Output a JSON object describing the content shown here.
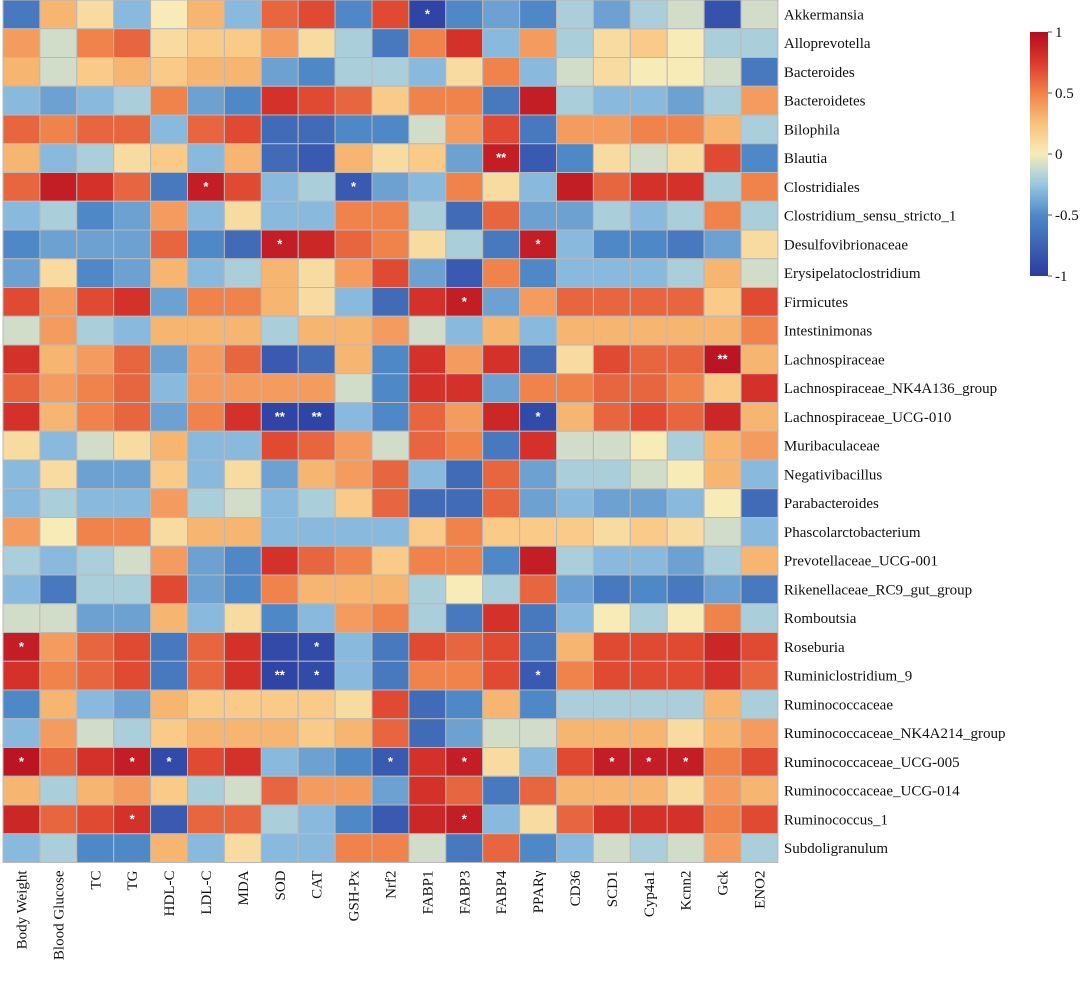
{
  "chart_data": {
    "type": "heatmap",
    "title": "",
    "rows": [
      "Akkermansia",
      "Alloprevotella",
      "Bacteroides",
      "Bacteroidetes",
      "Bilophila",
      "Blautia",
      "Clostridiales",
      "Clostridium_sensu_stricto_1",
      "Desulfovibrionaceae",
      "Erysipelatoclostridium",
      "Firmicutes",
      "Intestinimonas",
      "Lachnospiraceae",
      "Lachnospiraceae_NK4A136_group",
      "Lachnospiraceae_UCG-010",
      "Muribaculaceae",
      "Negativibacillus",
      "Parabacteroides",
      "Phascolarctobacterium",
      "Prevotellaceae_UCG-001",
      "Rikenellaceae_RC9_gut_group",
      "Romboutsia",
      "Roseburia",
      "Ruminiclostridium_9",
      "Ruminococcaceae",
      "Ruminococcaceae_NK4A214_group",
      "Ruminococcaceae_UCG-005",
      "Ruminococcaceae_UCG-014",
      "Ruminococcus_1",
      "Subdoligranulum"
    ],
    "columns": [
      "Body Weight",
      "Blood Glucose",
      "TC",
      "TG",
      "HDL-C",
      "LDL-C",
      "MDA",
      "SOD",
      "CAT",
      "GSH-Px",
      "Nrf2",
      "FABP1",
      "FABP3",
      "FABP4",
      "PPARγ",
      "CD36",
      "SCD1",
      "Cyp4a1",
      "Kcnn2",
      "Gck",
      "ENO2"
    ],
    "values": [
      [
        -0.6,
        0.3,
        0.1,
        -0.3,
        0.0,
        0.3,
        -0.3,
        0.6,
        0.7,
        -0.5,
        0.7,
        -0.95,
        -0.5,
        -0.4,
        -0.5,
        -0.2,
        -0.4,
        -0.2,
        -0.1,
        -0.85,
        -0.1
      ],
      [
        0.4,
        -0.1,
        0.5,
        0.6,
        0.1,
        0.2,
        0.2,
        0.4,
        0.1,
        -0.2,
        -0.6,
        0.5,
        0.8,
        -0.3,
        0.4,
        -0.2,
        0.1,
        0.2,
        0.0,
        -0.2,
        -0.2
      ],
      [
        0.3,
        -0.1,
        0.2,
        0.3,
        0.2,
        0.3,
        0.3,
        -0.4,
        -0.5,
        -0.2,
        -0.2,
        -0.3,
        0.1,
        0.5,
        -0.3,
        -0.1,
        0.1,
        0.0,
        0.0,
        -0.1,
        -0.6
      ],
      [
        -0.3,
        -0.4,
        -0.3,
        -0.2,
        0.5,
        -0.4,
        -0.5,
        0.8,
        0.7,
        0.6,
        0.2,
        0.5,
        0.5,
        -0.6,
        0.9,
        -0.2,
        -0.3,
        -0.3,
        -0.4,
        -0.2,
        0.4
      ],
      [
        0.6,
        0.5,
        0.6,
        0.6,
        -0.3,
        0.6,
        0.7,
        -0.7,
        -0.7,
        -0.5,
        -0.5,
        -0.1,
        0.4,
        0.7,
        -0.6,
        0.4,
        0.4,
        0.5,
        0.5,
        0.3,
        -0.2
      ],
      [
        0.3,
        -0.3,
        -0.2,
        0.1,
        0.2,
        -0.3,
        0.3,
        -0.7,
        -0.8,
        0.3,
        0.1,
        0.2,
        -0.4,
        0.9,
        -0.8,
        -0.5,
        0.1,
        -0.1,
        0.1,
        0.7,
        -0.5
      ],
      [
        0.6,
        0.9,
        0.8,
        0.6,
        -0.6,
        0.9,
        0.7,
        -0.3,
        -0.2,
        -0.8,
        -0.4,
        -0.3,
        0.5,
        0.1,
        -0.3,
        0.9,
        0.6,
        0.8,
        0.8,
        -0.2,
        0.5
      ],
      [
        -0.3,
        -0.2,
        -0.5,
        -0.4,
        0.4,
        -0.3,
        0.1,
        -0.3,
        -0.3,
        0.5,
        0.5,
        -0.2,
        -0.7,
        0.6,
        -0.4,
        -0.4,
        -0.2,
        -0.3,
        -0.2,
        0.5,
        -0.2
      ],
      [
        -0.5,
        -0.4,
        -0.4,
        -0.4,
        0.6,
        -0.5,
        -0.7,
        0.9,
        0.85,
        0.6,
        0.5,
        0.1,
        -0.2,
        -0.6,
        0.9,
        -0.3,
        -0.5,
        -0.5,
        -0.6,
        -0.4,
        0.1
      ],
      [
        -0.4,
        0.1,
        -0.5,
        -0.4,
        0.3,
        -0.3,
        -0.2,
        0.3,
        0.1,
        0.4,
        0.7,
        -0.4,
        -0.8,
        0.5,
        -0.5,
        -0.3,
        -0.3,
        -0.3,
        -0.2,
        0.3,
        -0.1
      ],
      [
        0.7,
        0.4,
        0.7,
        0.8,
        -0.4,
        0.5,
        0.5,
        0.3,
        0.1,
        -0.3,
        -0.7,
        0.8,
        0.9,
        -0.4,
        0.4,
        0.6,
        0.6,
        0.6,
        0.6,
        0.2,
        0.7
      ],
      [
        -0.1,
        0.4,
        -0.2,
        -0.3,
        0.3,
        0.3,
        0.3,
        -0.2,
        0.3,
        0.3,
        0.4,
        -0.1,
        -0.3,
        0.3,
        -0.3,
        0.3,
        0.3,
        0.3,
        0.3,
        0.3,
        0.5
      ],
      [
        0.8,
        0.3,
        0.4,
        0.6,
        -0.4,
        0.4,
        0.6,
        -0.8,
        -0.7,
        0.3,
        -0.5,
        0.8,
        0.4,
        0.8,
        -0.7,
        0.1,
        0.7,
        0.6,
        0.6,
        0.95,
        0.3
      ],
      [
        0.6,
        0.4,
        0.5,
        0.6,
        -0.3,
        0.4,
        0.4,
        0.4,
        0.4,
        -0.1,
        -0.5,
        0.8,
        0.8,
        -0.4,
        0.5,
        0.5,
        0.6,
        0.6,
        0.5,
        0.2,
        0.8
      ],
      [
        0.8,
        0.3,
        0.5,
        0.6,
        -0.4,
        0.5,
        0.8,
        -0.95,
        -0.95,
        -0.3,
        -0.5,
        0.6,
        0.4,
        0.85,
        -0.9,
        0.3,
        0.6,
        0.7,
        0.6,
        0.85,
        0.3
      ],
      [
        0.1,
        -0.3,
        -0.1,
        0.1,
        0.3,
        -0.3,
        -0.3,
        0.7,
        0.6,
        0.4,
        -0.1,
        0.6,
        0.5,
        -0.6,
        0.8,
        -0.1,
        -0.1,
        0.0,
        -0.2,
        0.3,
        0.4
      ],
      [
        -0.3,
        0.1,
        -0.4,
        -0.4,
        0.2,
        -0.3,
        0.1,
        -0.4,
        0.3,
        0.4,
        0.6,
        -0.3,
        -0.7,
        0.6,
        -0.4,
        -0.2,
        -0.2,
        -0.1,
        0.0,
        0.3,
        -0.3
      ],
      [
        -0.3,
        -0.2,
        -0.3,
        -0.3,
        0.4,
        -0.2,
        -0.1,
        -0.3,
        -0.2,
        0.2,
        0.6,
        -0.7,
        -0.7,
        0.6,
        -0.4,
        -0.3,
        -0.4,
        -0.4,
        -0.3,
        0.0,
        -0.7
      ],
      [
        0.4,
        0.0,
        0.5,
        0.5,
        0.1,
        0.3,
        0.3,
        -0.3,
        -0.3,
        -0.3,
        -0.3,
        0.2,
        0.5,
        0.2,
        0.2,
        0.2,
        0.1,
        0.2,
        0.1,
        -0.1,
        -0.3
      ],
      [
        -0.2,
        -0.3,
        -0.2,
        -0.1,
        0.4,
        -0.4,
        -0.5,
        0.8,
        0.6,
        0.5,
        0.2,
        0.5,
        0.5,
        -0.5,
        0.9,
        -0.2,
        -0.3,
        -0.3,
        -0.4,
        -0.2,
        0.3
      ],
      [
        -0.3,
        -0.6,
        -0.2,
        -0.2,
        0.7,
        -0.4,
        -0.5,
        0.5,
        0.3,
        0.3,
        0.3,
        -0.2,
        0.0,
        -0.2,
        0.6,
        -0.4,
        -0.6,
        -0.5,
        -0.6,
        -0.4,
        -0.6
      ],
      [
        -0.1,
        -0.1,
        -0.4,
        -0.4,
        0.3,
        -0.3,
        0.1,
        -0.5,
        -0.3,
        0.4,
        0.5,
        -0.2,
        -0.6,
        0.8,
        -0.6,
        -0.3,
        0.0,
        -0.2,
        0.0,
        0.5,
        -0.2
      ],
      [
        0.9,
        0.4,
        0.6,
        0.7,
        -0.6,
        0.6,
        0.8,
        -0.9,
        -0.9,
        -0.3,
        -0.6,
        0.7,
        0.6,
        0.7,
        -0.6,
        0.3,
        0.7,
        0.7,
        0.7,
        0.85,
        0.7
      ],
      [
        0.8,
        0.5,
        0.6,
        0.7,
        -0.6,
        0.6,
        0.8,
        -0.95,
        -0.9,
        -0.3,
        -0.6,
        0.5,
        0.5,
        0.7,
        -0.8,
        0.5,
        0.7,
        0.7,
        0.7,
        0.8,
        0.6
      ],
      [
        -0.5,
        0.3,
        -0.3,
        -0.4,
        0.3,
        0.2,
        0.2,
        0.2,
        0.2,
        0.1,
        0.7,
        -0.7,
        -0.5,
        0.3,
        -0.5,
        -0.2,
        -0.2,
        -0.2,
        -0.2,
        0.3,
        -0.2
      ],
      [
        -0.3,
        0.4,
        -0.1,
        -0.2,
        0.2,
        0.3,
        0.3,
        0.3,
        0.2,
        0.3,
        0.6,
        -0.7,
        -0.4,
        -0.1,
        -0.1,
        0.3,
        0.3,
        0.3,
        0.1,
        0.3,
        0.4
      ],
      [
        0.95,
        0.6,
        0.8,
        0.9,
        -0.9,
        0.7,
        0.8,
        -0.3,
        -0.4,
        -0.5,
        -0.8,
        0.8,
        0.9,
        0.1,
        -0.3,
        0.7,
        0.9,
        0.9,
        0.9,
        0.5,
        0.7
      ],
      [
        0.3,
        -0.2,
        0.3,
        0.4,
        0.2,
        -0.2,
        -0.1,
        0.6,
        0.4,
        0.4,
        -0.4,
        0.8,
        0.6,
        -0.6,
        0.6,
        0.3,
        0.3,
        0.3,
        0.1,
        0.4,
        0.3
      ],
      [
        0.85,
        0.6,
        0.7,
        0.8,
        -0.8,
        0.6,
        0.6,
        -0.2,
        -0.3,
        -0.5,
        -0.8,
        0.85,
        0.9,
        -0.3,
        0.1,
        0.6,
        0.8,
        0.8,
        0.8,
        0.5,
        0.7
      ],
      [
        -0.3,
        -0.2,
        -0.5,
        -0.5,
        0.3,
        -0.3,
        0.1,
        -0.3,
        -0.3,
        0.5,
        0.5,
        -0.1,
        -0.6,
        0.6,
        -0.5,
        -0.3,
        -0.1,
        -0.2,
        -0.1,
        0.4,
        -0.2
      ]
    ],
    "annotations": [
      {
        "row": 0,
        "col": 11,
        "text": "*"
      },
      {
        "row": 5,
        "col": 13,
        "text": "**"
      },
      {
        "row": 6,
        "col": 5,
        "text": "*"
      },
      {
        "row": 6,
        "col": 9,
        "text": "*"
      },
      {
        "row": 8,
        "col": 7,
        "text": "*"
      },
      {
        "row": 8,
        "col": 14,
        "text": "*"
      },
      {
        "row": 10,
        "col": 12,
        "text": "*"
      },
      {
        "row": 12,
        "col": 19,
        "text": "**"
      },
      {
        "row": 14,
        "col": 7,
        "text": "**"
      },
      {
        "row": 14,
        "col": 8,
        "text": "**"
      },
      {
        "row": 14,
        "col": 14,
        "text": "*"
      },
      {
        "row": 22,
        "col": 0,
        "text": "*"
      },
      {
        "row": 22,
        "col": 8,
        "text": "*"
      },
      {
        "row": 23,
        "col": 7,
        "text": "**"
      },
      {
        "row": 23,
        "col": 8,
        "text": "*"
      },
      {
        "row": 23,
        "col": 14,
        "text": "*"
      },
      {
        "row": 26,
        "col": 0,
        "text": "*"
      },
      {
        "row": 26,
        "col": 3,
        "text": "*"
      },
      {
        "row": 26,
        "col": 4,
        "text": "*"
      },
      {
        "row": 26,
        "col": 10,
        "text": "*"
      },
      {
        "row": 26,
        "col": 12,
        "text": "*"
      },
      {
        "row": 26,
        "col": 16,
        "text": "*"
      },
      {
        "row": 26,
        "col": 17,
        "text": "*"
      },
      {
        "row": 26,
        "col": 18,
        "text": "*"
      },
      {
        "row": 28,
        "col": 3,
        "text": "*"
      },
      {
        "row": 28,
        "col": 12,
        "text": "*"
      }
    ],
    "color_scale": {
      "range": [
        -1,
        1
      ],
      "ticks": [
        1,
        0.5,
        0,
        -0.5,
        -1
      ],
      "tick_labels": [
        "1",
        "0.5",
        "0",
        "-0.5",
        "-1"
      ],
      "stops": [
        {
          "value": -1,
          "color": "#2b3ca0"
        },
        {
          "value": -0.5,
          "color": "#4f88c7"
        },
        {
          "value": -0.25,
          "color": "#97c7e3"
        },
        {
          "value": 0,
          "color": "#f7ecb8"
        },
        {
          "value": 0.25,
          "color": "#f9c17c"
        },
        {
          "value": 0.5,
          "color": "#f0834b"
        },
        {
          "value": 0.75,
          "color": "#dc3a2c"
        },
        {
          "value": 1,
          "color": "#b30b20"
        }
      ]
    },
    "xlabel": "",
    "ylabel": "",
    "legend": "top-right"
  },
  "colors": {
    "grid_line": "#b9b9b9",
    "annotation_text": "#ffffff"
  }
}
